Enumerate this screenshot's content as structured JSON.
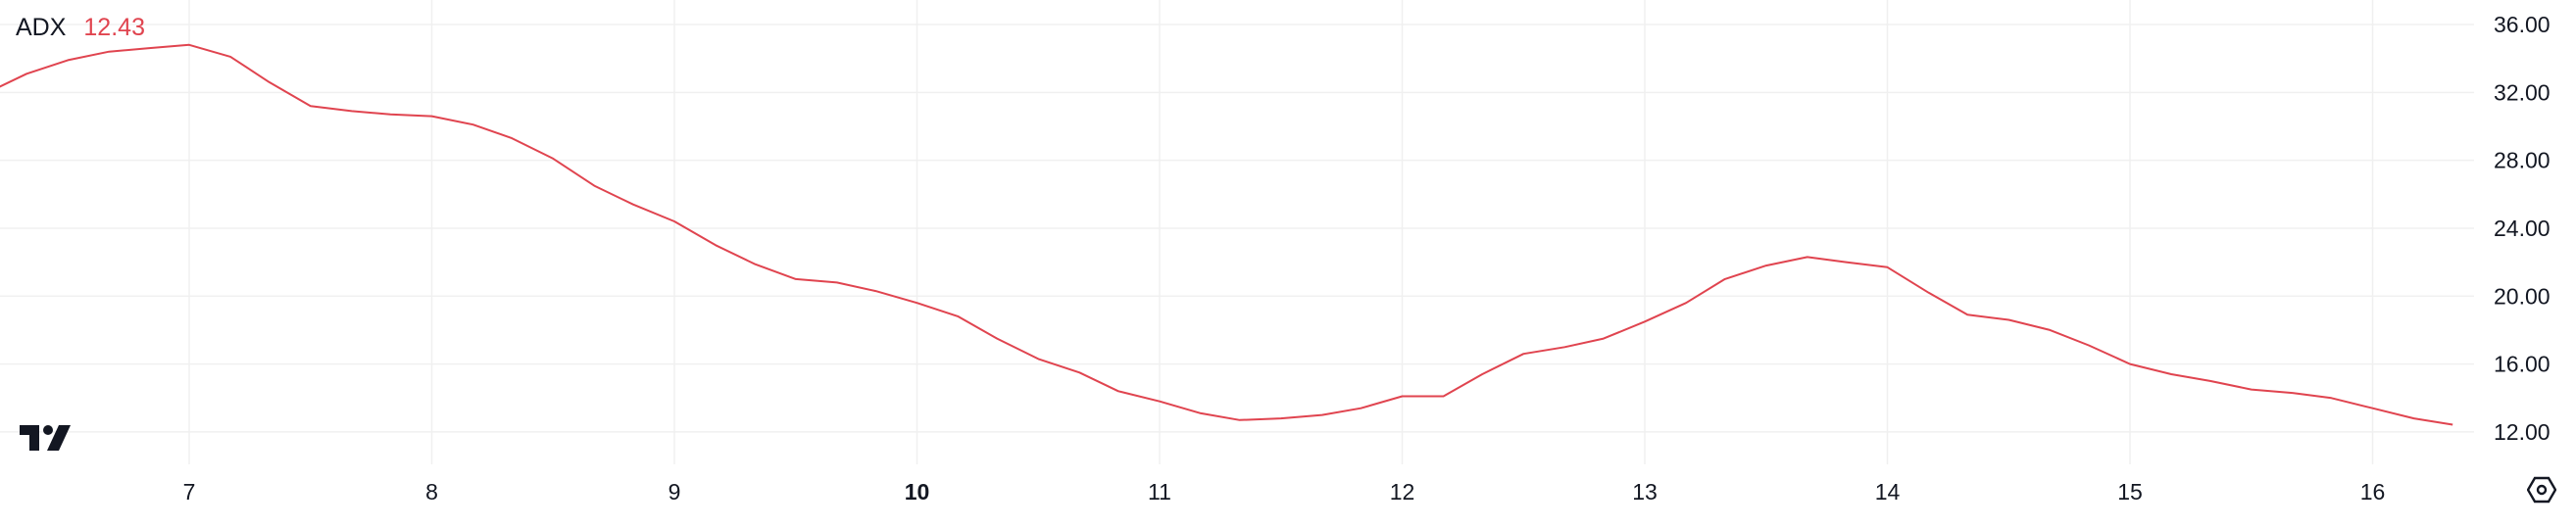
{
  "legend": {
    "name": "ADX",
    "value": "12.43"
  },
  "colors": {
    "line": "#e0444f",
    "grid": "#f0f0f0",
    "text": "#131722"
  },
  "icons": {
    "logo": "tradingview-logo",
    "settings": "settings-hexagon-icon"
  },
  "logo_text": "TV",
  "chart_data": {
    "type": "line",
    "title": "",
    "series": [
      {
        "name": "ADX",
        "x": [
          6.17,
          6.33,
          6.5,
          6.67,
          6.83,
          7.0,
          7.17,
          7.33,
          7.5,
          7.67,
          7.83,
          8.0,
          8.17,
          8.33,
          8.5,
          8.67,
          8.83,
          9.0,
          9.17,
          9.33,
          9.5,
          9.67,
          9.83,
          10.0,
          10.17,
          10.33,
          10.5,
          10.67,
          10.83,
          11.0,
          11.17,
          11.33,
          11.5,
          11.67,
          11.83,
          12.0,
          12.17,
          12.33,
          12.5,
          12.67,
          12.83,
          13.0,
          13.17,
          13.33,
          13.5,
          13.67,
          13.83,
          14.0,
          14.17,
          14.33,
          14.5,
          14.67,
          14.83,
          15.0,
          15.17,
          15.33,
          15.5,
          15.67,
          15.83,
          16.0,
          16.17,
          16.33
        ],
        "values": [
          32.0,
          33.1,
          33.9,
          34.4,
          34.6,
          34.8,
          34.1,
          32.6,
          31.2,
          30.9,
          30.7,
          30.6,
          30.1,
          29.3,
          28.1,
          26.5,
          25.4,
          24.4,
          23.0,
          21.9,
          21.0,
          20.8,
          20.3,
          19.6,
          18.8,
          17.5,
          16.3,
          15.5,
          14.4,
          13.8,
          13.1,
          12.7,
          12.8,
          13.0,
          13.4,
          14.1,
          14.1,
          15.4,
          16.6,
          17.0,
          17.5,
          18.5,
          19.6,
          21.0,
          21.8,
          22.3,
          22.0,
          21.7,
          20.2,
          18.9,
          18.6,
          18.0,
          17.1,
          16.0,
          15.4,
          15.0,
          14.5,
          14.3,
          14.0,
          13.4,
          12.8,
          12.43
        ]
      }
    ],
    "x_ticks": [
      {
        "value": 7,
        "label": "7"
      },
      {
        "value": 8,
        "label": "8"
      },
      {
        "value": 9,
        "label": "9"
      },
      {
        "value": 10,
        "label": "10",
        "bold": true
      },
      {
        "value": 11,
        "label": "11"
      },
      {
        "value": 12,
        "label": "12"
      },
      {
        "value": 13,
        "label": "13"
      },
      {
        "value": 14,
        "label": "14"
      },
      {
        "value": 15,
        "label": "15"
      },
      {
        "value": 16,
        "label": "16"
      }
    ],
    "y_ticks": [
      {
        "value": 36,
        "label": "36.00"
      },
      {
        "value": 32,
        "label": "32.00"
      },
      {
        "value": 28,
        "label": "28.00"
      },
      {
        "value": 24,
        "label": "24.00"
      },
      {
        "value": 20,
        "label": "20.00"
      },
      {
        "value": 16,
        "label": "16.00"
      },
      {
        "value": 12,
        "label": "12.00"
      }
    ],
    "ylim": [
      10.5,
      37.5
    ],
    "grid": true,
    "y_axis_position": "right"
  }
}
